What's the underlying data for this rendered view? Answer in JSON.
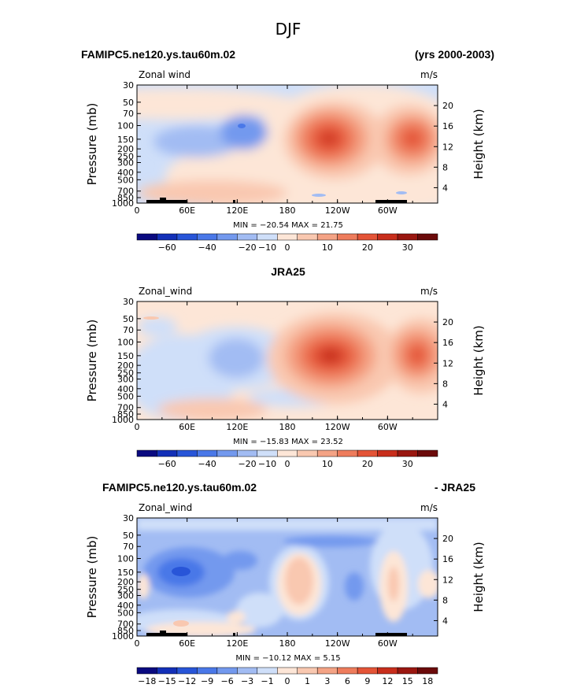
{
  "chart_data": {
    "type": "heatmap",
    "title": "DJF",
    "variable": "Zonal wind",
    "x_ticks": [
      "0",
      "60E",
      "120E",
      "180",
      "120W",
      "60W"
    ],
    "y_left_label": "Pressure (mb)",
    "y_left_ticks": [
      "30",
      "50",
      "70",
      "100",
      "150",
      "200",
      "250",
      "300",
      "400",
      "500",
      "700",
      "850",
      "1000"
    ],
    "y_right_label": "Height (km)",
    "y_right_ticks": [
      "20",
      "16",
      "12",
      "8",
      "4"
    ],
    "panels": [
      {
        "left_title": "FAMIPC5.ne120.ys.tau60m.02",
        "right_title": "(yrs 2000-2003)",
        "center_title": "",
        "var_label": "Zonal wind",
        "units": "m/s",
        "min": "-20.54",
        "max": "21.75",
        "stats_text": "MIN = −20.54   MAX =  21.75",
        "colorbar_labels": [
          "−60",
          "−40",
          "−20",
          "−10",
          "0",
          "10",
          "20",
          "30"
        ]
      },
      {
        "left_title": "",
        "right_title": "",
        "center_title": "JRA25",
        "var_label": "Zonal_wind",
        "units": "m/s",
        "min": "-15.83",
        "max": "23.52",
        "stats_text": "MIN = −15.83   MAX =  23.52",
        "colorbar_labels": [
          "−60",
          "−40",
          "−20",
          "−10",
          "0",
          "10",
          "20",
          "30"
        ]
      },
      {
        "left_title": "FAMIPC5.ne120.ys.tau60m.02",
        "right_title": "- JRA25",
        "center_title": "",
        "var_label": "Zonal_wind",
        "units": "m/s",
        "min": "-10.12",
        "max": "5.15",
        "stats_text": "MIN = −10.12   MAX =   5.15",
        "colorbar_labels": [
          "−18",
          "−15",
          "−12",
          "−9",
          "−6",
          "−3",
          "−1",
          "0",
          "1",
          "3",
          "6",
          "9",
          "12",
          "15",
          "18"
        ]
      }
    ],
    "colorbar_colors": [
      "#0a0a80",
      "#1330b8",
      "#2855d8",
      "#4a78e8",
      "#7399ee",
      "#a2bcf3",
      "#cfdff9",
      "#fde6d7",
      "#f9c8b0",
      "#f4a385",
      "#ee7c5c",
      "#e45437",
      "#c82e1c",
      "#9a1710",
      "#6b0a0a"
    ]
  }
}
